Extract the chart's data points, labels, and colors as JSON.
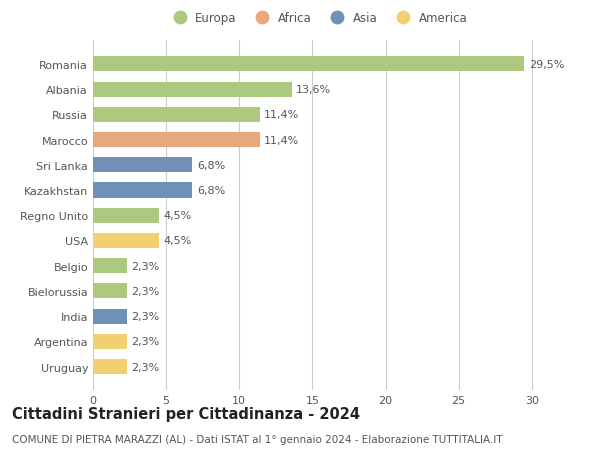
{
  "countries": [
    "Romania",
    "Albania",
    "Russia",
    "Marocco",
    "Sri Lanka",
    "Kazakhstan",
    "Regno Unito",
    "USA",
    "Belgio",
    "Bielorussia",
    "India",
    "Argentina",
    "Uruguay"
  ],
  "values": [
    29.5,
    13.6,
    11.4,
    11.4,
    6.8,
    6.8,
    4.5,
    4.5,
    2.3,
    2.3,
    2.3,
    2.3,
    2.3
  ],
  "labels": [
    "29,5%",
    "13,6%",
    "11,4%",
    "11,4%",
    "6,8%",
    "6,8%",
    "4,5%",
    "4,5%",
    "2,3%",
    "2,3%",
    "2,3%",
    "2,3%",
    "2,3%"
  ],
  "continents": [
    "Europa",
    "Europa",
    "Europa",
    "Africa",
    "Asia",
    "Asia",
    "Europa",
    "America",
    "Europa",
    "Europa",
    "Asia",
    "America",
    "America"
  ],
  "continent_colors": {
    "Europa": "#adc97f",
    "Africa": "#e8a87c",
    "Asia": "#7090b8",
    "America": "#f0d070"
  },
  "legend_order": [
    "Europa",
    "Africa",
    "Asia",
    "America"
  ],
  "xlim": [
    0,
    32
  ],
  "xticks": [
    0,
    5,
    10,
    15,
    20,
    25,
    30
  ],
  "title": "Cittadini Stranieri per Cittadinanza - 2024",
  "subtitle": "COMUNE DI PIETRA MARAZZI (AL) - Dati ISTAT al 1° gennaio 2024 - Elaborazione TUTTITALIA.IT",
  "background_color": "#ffffff",
  "grid_color": "#cccccc",
  "bar_height": 0.6,
  "title_fontsize": 10.5,
  "subtitle_fontsize": 7.5,
  "label_fontsize": 8,
  "tick_fontsize": 8,
  "legend_fontsize": 8.5
}
